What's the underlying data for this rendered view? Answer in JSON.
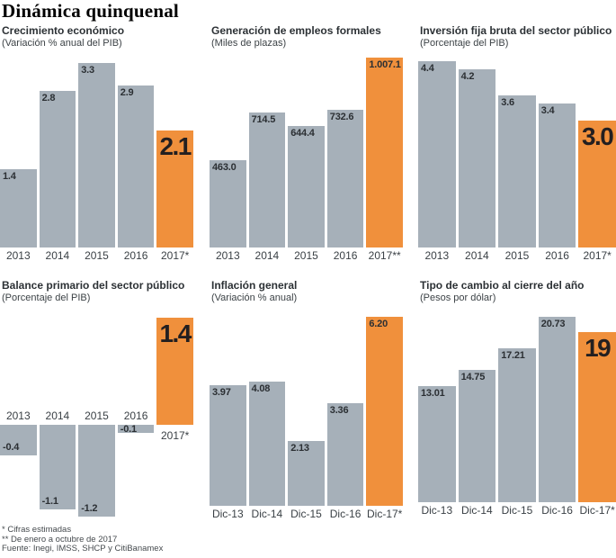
{
  "page": {
    "title": "Dinámica quinquenal"
  },
  "colors": {
    "bar_gray": "#a6b0b9",
    "bar_highlight": "#f0903c",
    "big_label": "#231f20"
  },
  "footnotes": {
    "line1": "* Cifras estimadas",
    "line2": "** De enero a octubre de 2017",
    "line3": "Fuente: Inegi, IMSS, SHCP y CitiBanamex"
  },
  "chart_data": [
    {
      "id": "crecimiento-economico",
      "type": "bar",
      "title": "Crecimiento económico",
      "subtitle": "(Variación % anual del PIB)",
      "categories": [
        "2013",
        "2014",
        "2015",
        "2016",
        "2017*"
      ],
      "values": [
        1.4,
        2.8,
        3.3,
        2.9,
        2.1
      ],
      "labels": [
        "1.4",
        "2.8",
        "3.3",
        "2.9",
        "2.1"
      ],
      "highlight_index": 4,
      "big_label_index": 4,
      "ylim": [
        0,
        3.3
      ],
      "grid": false,
      "legend": null
    },
    {
      "id": "generacion-empleos-formales",
      "type": "bar",
      "title": "Generación de empleos formales",
      "subtitle": "(Miles de plazas)",
      "categories": [
        "2013",
        "2014",
        "2015",
        "2016",
        "2017**"
      ],
      "values": [
        463.0,
        714.5,
        644.4,
        732.6,
        1007.1
      ],
      "labels": [
        "463.0",
        "714.5",
        "644.4",
        "732.6",
        "1.007.1"
      ],
      "highlight_index": 4,
      "big_label_index": null,
      "ylim": [
        0,
        1007.1
      ],
      "grid": false,
      "legend": null
    },
    {
      "id": "inversion-fija-bruta",
      "type": "bar",
      "title": "Inversión fija bruta del sector público",
      "subtitle": "(Porcentaje del PIB)",
      "categories": [
        "2013",
        "2014",
        "2015",
        "2016",
        "2017*"
      ],
      "values": [
        4.4,
        4.2,
        3.6,
        3.4,
        3.0
      ],
      "labels": [
        "4.4",
        "4.2",
        "3.6",
        "3.4",
        "3.0"
      ],
      "highlight_index": 4,
      "big_label_index": 4,
      "ylim": [
        0,
        4.4
      ],
      "grid": false,
      "legend": null
    },
    {
      "id": "balance-primario",
      "type": "bar",
      "title": "Balance primario del sector público",
      "subtitle": "(Porcentaje del PIB)",
      "categories": [
        "2013",
        "2014",
        "2015",
        "2016",
        "2017*"
      ],
      "values": [
        -0.4,
        -1.1,
        -1.2,
        -0.1,
        1.4
      ],
      "labels": [
        "-0.4",
        "-1.1",
        "-1.2",
        "-0.1",
        "1.4"
      ],
      "highlight_index": 4,
      "big_label_index": 4,
      "ylim": [
        -1.2,
        1.4
      ],
      "grid": false,
      "legend": null
    },
    {
      "id": "inflacion-general",
      "type": "bar",
      "title": "Inflación general",
      "subtitle": "(Variación % anual)",
      "categories": [
        "Dic-13",
        "Dic-14",
        "Dic-15",
        "Dic-16",
        "Dic-17*"
      ],
      "values": [
        3.97,
        4.08,
        2.13,
        3.36,
        6.2
      ],
      "labels": [
        "3.97",
        "4.08",
        "2.13",
        "3.36",
        "6.20"
      ],
      "highlight_index": 4,
      "big_label_index": null,
      "ylim": [
        0,
        6.2
      ],
      "grid": false,
      "legend": null
    },
    {
      "id": "tipo-de-cambio",
      "type": "bar",
      "title": "Tipo de cambio al cierre del año",
      "subtitle": "(Pesos por dólar)",
      "categories": [
        "Dic-13",
        "Dic-14",
        "Dic-15",
        "Dic-16",
        "Dic-17*"
      ],
      "values": [
        13.01,
        14.75,
        17.21,
        20.73,
        19
      ],
      "labels": [
        "13.01",
        "14.75",
        "17.21",
        "20.73",
        "19"
      ],
      "highlight_index": 4,
      "big_label_index": 4,
      "ylim": [
        0,
        20.73
      ],
      "grid": false,
      "legend": null
    }
  ]
}
